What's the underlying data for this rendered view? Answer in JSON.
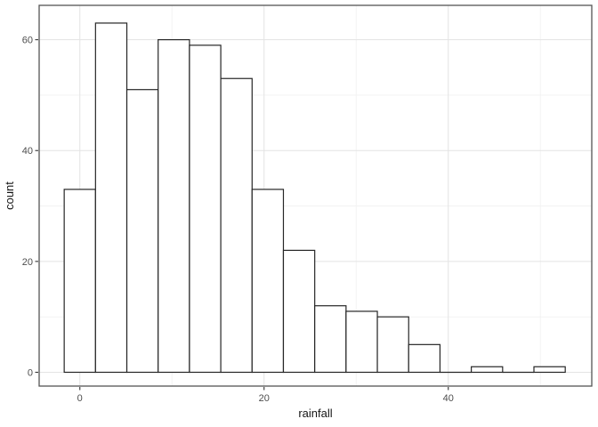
{
  "figure": {
    "background": "#ffffff"
  },
  "chart_data": {
    "type": "bar",
    "subtype": "histogram",
    "title": "",
    "xlabel": "rainfall",
    "ylabel": "count",
    "bin_start": -1.7,
    "bin_width": 3.4,
    "bin_centers": [
      0,
      3.4,
      6.8,
      10.2,
      13.6,
      17.0,
      20.4,
      23.8,
      27.2,
      30.6,
      34.0,
      37.4,
      40.8,
      44.2,
      47.6,
      51.0
    ],
    "counts": [
      33,
      63,
      51,
      60,
      59,
      53,
      33,
      22,
      12,
      11,
      10,
      5,
      0,
      1,
      0,
      1
    ],
    "total_count": 414,
    "xlim": [
      -4.42,
      55.58
    ],
    "ylim": [
      -2.49,
      66.2
    ],
    "x_major_ticks": [
      0,
      20,
      40
    ],
    "x_minor_ticks": [
      10,
      30,
      50
    ],
    "y_major_ticks": [
      0,
      20,
      40,
      60
    ],
    "y_minor_ticks": [
      10,
      30,
      50
    ],
    "x_tick_labels": [
      "0",
      "20",
      "40"
    ],
    "y_tick_labels": [
      "0",
      "20",
      "40",
      "60"
    ],
    "grid": "on",
    "legend": "none",
    "colors": {
      "bar_fill": "#ffffff",
      "bar_stroke": "#262626",
      "panel_border": "#555555",
      "grid_major": "#e3e3e3",
      "grid_minor": "#f1f1f1",
      "tick_mark": "#333333",
      "tick_label": "#4d4d4d",
      "axis_title": "#141414",
      "panel_background": "#ffffff"
    }
  }
}
